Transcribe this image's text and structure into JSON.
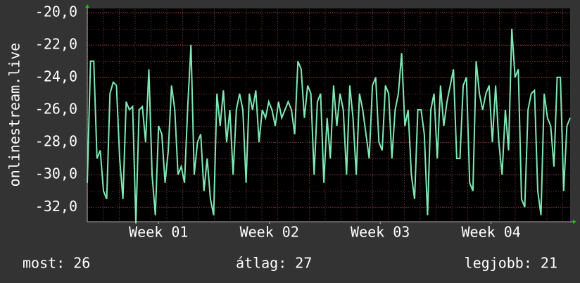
{
  "chart_data": {
    "type": "line",
    "ylabel": "onlinestream.live",
    "x": [
      0,
      5,
      10,
      15,
      20,
      25,
      30,
      35,
      40,
      45,
      50,
      55,
      60,
      65,
      70,
      75,
      80,
      85,
      90,
      95,
      100,
      105,
      110,
      115,
      120,
      125,
      130,
      135,
      140,
      145,
      150,
      155,
      160,
      165,
      170,
      175,
      180,
      185,
      190,
      195,
      200,
      205,
      210,
      215,
      220,
      225,
      230,
      235,
      240,
      245,
      250,
      255,
      260,
      265,
      270,
      275,
      280,
      285,
      290,
      295,
      300,
      305,
      310,
      315,
      320,
      325,
      330,
      335,
      340,
      345,
      350,
      355,
      360,
      365,
      370,
      375,
      380,
      385,
      390,
      395,
      400,
      405,
      410,
      415,
      420,
      425,
      430,
      435,
      440,
      445,
      450,
      455,
      460,
      465,
      470,
      475,
      480,
      485,
      490,
      495,
      500,
      505,
      510,
      515,
      520,
      525,
      530,
      535,
      540,
      545,
      550,
      555,
      560,
      565,
      570,
      575,
      580,
      585,
      590,
      595,
      600,
      605,
      610,
      615,
      620,
      625,
      630,
      635,
      640,
      645,
      650,
      655,
      660,
      665,
      670,
      675,
      680,
      685,
      690,
      695,
      700,
      705,
      710,
      715,
      720,
      725,
      730,
      735,
      740,
      745
    ],
    "series": [
      {
        "color": "#7fe8b4",
        "values": [
          -30.5,
          -23,
          -23,
          -29,
          -28.5,
          -31,
          -31.5,
          -25,
          -24.3,
          -24.5,
          -29,
          -31.5,
          -25.5,
          -26,
          -25.8,
          -33,
          -26,
          -25.8,
          -28,
          -23.5,
          -30,
          -32.5,
          -27,
          -27.5,
          -30.5,
          -28.5,
          -24.5,
          -26,
          -30,
          -29.5,
          -30.5,
          -25.8,
          -22,
          -30,
          -28,
          -27.5,
          -31,
          -29,
          -31.5,
          -32.5,
          -25,
          -27,
          -24.8,
          -28,
          -26,
          -30,
          -26,
          -25,
          -26,
          -30.5,
          -25,
          -26,
          -24.8,
          -28,
          -26,
          -26.5,
          -25.5,
          -26,
          -27,
          -25.5,
          -26.5,
          -26,
          -25.5,
          -26,
          -27.5,
          -23,
          -23.5,
          -26.5,
          -24.5,
          -25,
          -30,
          -25.5,
          -25,
          -30.5,
          -26.5,
          -29,
          -24.5,
          -27,
          -25,
          -26,
          -30,
          -24.5,
          -26.5,
          -30,
          -25,
          -26,
          -27.5,
          -29,
          -24.5,
          -24,
          -28,
          -28.5,
          -24.5,
          -25,
          -29,
          -26,
          -25,
          -22.5,
          -27,
          -26,
          -30,
          -31.5,
          -26,
          -26,
          -27.5,
          -32.5,
          -26,
          -25,
          -29,
          -24.5,
          -27,
          -25.5,
          -24.5,
          -23.5,
          -29,
          -29,
          -24.5,
          -24,
          -30.5,
          -31,
          -23,
          -25,
          -26,
          -25,
          -24.5,
          -28,
          -24.5,
          -28,
          -30,
          -26,
          -28.5,
          -21,
          -24,
          -23.5,
          -31.5,
          -32,
          -26,
          -25,
          -24.8,
          -31,
          -32.5,
          -25,
          -26.5,
          -27,
          -29.5,
          -24,
          -24,
          -31,
          -27,
          -26.5
        ]
      }
    ],
    "xlim": [
      0,
      745
    ],
    "xticks": [
      {
        "value": 110,
        "label": "Week 01"
      },
      {
        "value": 281,
        "label": "Week 02"
      },
      {
        "value": 452,
        "label": "Week 03"
      },
      {
        "value": 623,
        "label": "Week 04"
      }
    ],
    "ylim": [
      -32.9,
      -19.75
    ],
    "yticks": [
      {
        "value": -32,
        "label": "-32,0"
      },
      {
        "value": -30,
        "label": "-30,0"
      },
      {
        "value": -28,
        "label": "-28,0"
      },
      {
        "value": -26,
        "label": "-26,0"
      },
      {
        "value": -24,
        "label": "-24,0"
      },
      {
        "value": -22,
        "label": "-22,0"
      },
      {
        "value": -20,
        "label": "-20,0"
      }
    ],
    "grid": true,
    "stats": [
      "most: 26",
      "átlag: 27",
      "legjobb: 21"
    ]
  }
}
